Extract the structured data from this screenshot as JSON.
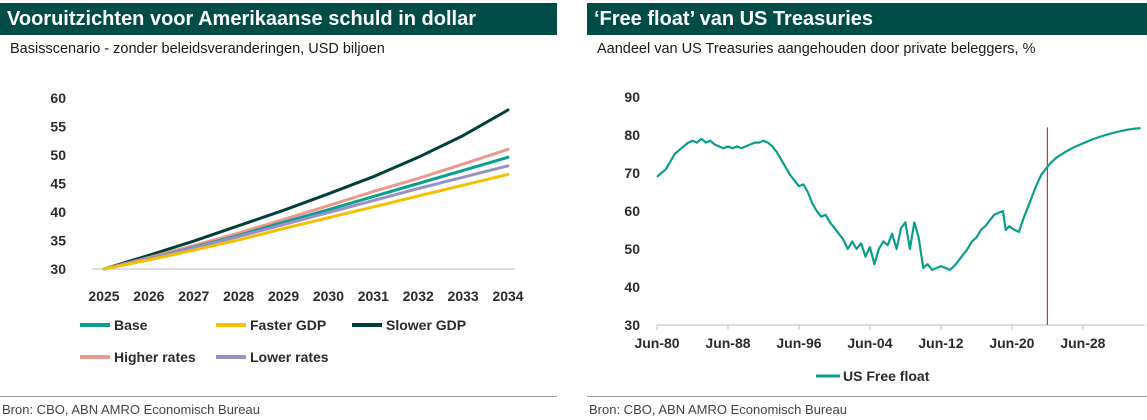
{
  "left_panel": {
    "title": "Vooruitzichten voor Amerikaanse schuld in dollar",
    "subtitle": "Basisscenario - zonder beleidsveranderingen, USD biljoen",
    "source": "Bron: CBO, ABN AMRO Economisch Bureau"
  },
  "right_panel": {
    "title": "‘Free float’  van US Treasuries",
    "subtitle": "Aandeel van US Treasuries aangehouden door private beleggers, %",
    "source": "Bron: CBO, ABN AMRO Economisch Bureau"
  },
  "chart_data": [
    {
      "type": "line",
      "x": [
        2025,
        2026,
        2027,
        2028,
        2029,
        2030,
        2031,
        2032,
        2033,
        2034
      ],
      "categories": [
        "2025",
        "2026",
        "2027",
        "2028",
        "2029",
        "2030",
        "2031",
        "2032",
        "2033",
        "2034"
      ],
      "ylim": [
        30,
        60
      ],
      "yticks": [
        "30",
        "35",
        "40",
        "45",
        "50",
        "55",
        "60"
      ],
      "grid": false,
      "legend_position": "bottom",
      "series": [
        {
          "name": "Base",
          "color": "#0a9e8d",
          "values": [
            30.0,
            31.8,
            33.8,
            35.9,
            38.2,
            40.4,
            42.7,
            45.0,
            47.3,
            49.6
          ]
        },
        {
          "name": "Faster GDP",
          "color": "#f5c000",
          "values": [
            30.0,
            31.6,
            33.3,
            35.1,
            37.1,
            39.0,
            40.9,
            42.8,
            44.7,
            46.6
          ]
        },
        {
          "name": "Slower GDP",
          "color": "#00403b",
          "values": [
            30.0,
            32.4,
            34.9,
            37.6,
            40.3,
            43.2,
            46.2,
            49.6,
            53.4,
            57.9
          ]
        },
        {
          "name": "Higher rates",
          "color": "#e99a8c",
          "values": [
            30.0,
            32.0,
            34.1,
            36.3,
            38.7,
            41.1,
            43.6,
            45.9,
            48.4,
            51.0
          ]
        },
        {
          "name": "Lower rates",
          "color": "#9a90c8",
          "values": [
            30.0,
            31.8,
            33.7,
            35.7,
            37.8,
            39.9,
            42.0,
            44.1,
            46.1,
            48.1
          ]
        }
      ]
    },
    {
      "type": "line",
      "xlim": [
        1980.5,
        2035.5
      ],
      "xticks": [
        1980.5,
        1988.5,
        1996.5,
        2004.5,
        2012.5,
        2020.5,
        2028.5
      ],
      "xtick_labels": [
        "Jun-80",
        "Jun-88",
        "Jun-96",
        "Jun-04",
        "Jun-12",
        "Jun-20",
        "Jun-28"
      ],
      "ylim": [
        30,
        90
      ],
      "yticks": [
        "30",
        "40",
        "50",
        "60",
        "70",
        "80",
        "90"
      ],
      "grid": false,
      "legend_position": "bottom",
      "marker_line": {
        "x": 2024.5,
        "color": "#e0302a",
        "y_top": 82
      },
      "series": [
        {
          "name": "US Free float",
          "color": "#0a9e8d",
          "points": [
            [
              1980.5,
              69
            ],
            [
              1981.0,
              70
            ],
            [
              1981.5,
              71
            ],
            [
              1982.0,
              73
            ],
            [
              1982.5,
              75
            ],
            [
              1983.0,
              76
            ],
            [
              1983.5,
              77
            ],
            [
              1984.0,
              78
            ],
            [
              1984.5,
              78.5
            ],
            [
              1985.0,
              78
            ],
            [
              1985.5,
              79
            ],
            [
              1986.0,
              78
            ],
            [
              1986.5,
              78.5
            ],
            [
              1987.0,
              77.5
            ],
            [
              1987.5,
              77
            ],
            [
              1988.0,
              76.5
            ],
            [
              1988.5,
              77
            ],
            [
              1989.0,
              76.5
            ],
            [
              1989.5,
              77
            ],
            [
              1990.0,
              76.5
            ],
            [
              1990.5,
              77
            ],
            [
              1991.0,
              77.5
            ],
            [
              1991.5,
              78
            ],
            [
              1992.0,
              78
            ],
            [
              1992.5,
              78.5
            ],
            [
              1993.0,
              78
            ],
            [
              1993.5,
              77
            ],
            [
              1994.0,
              75.5
            ],
            [
              1994.5,
              73.5
            ],
            [
              1995.0,
              71.5
            ],
            [
              1995.5,
              69.5
            ],
            [
              1996.0,
              68
            ],
            [
              1996.5,
              66.5
            ],
            [
              1997.0,
              67
            ],
            [
              1997.5,
              65
            ],
            [
              1998.0,
              62
            ],
            [
              1998.5,
              60
            ],
            [
              1999.0,
              58.5
            ],
            [
              1999.5,
              59
            ],
            [
              2000.0,
              57
            ],
            [
              2000.5,
              55.5
            ],
            [
              2001.0,
              54
            ],
            [
              2001.5,
              52.5
            ],
            [
              2002.0,
              50
            ],
            [
              2002.5,
              52
            ],
            [
              2003.0,
              50
            ],
            [
              2003.5,
              51.5
            ],
            [
              2004.0,
              48
            ],
            [
              2004.5,
              50.5
            ],
            [
              2005.0,
              46
            ],
            [
              2005.5,
              50
            ],
            [
              2006.0,
              52
            ],
            [
              2006.5,
              51
            ],
            [
              2007.0,
              54
            ],
            [
              2007.5,
              50
            ],
            [
              2008.0,
              55.5
            ],
            [
              2008.5,
              57
            ],
            [
              2009.0,
              50
            ],
            [
              2009.5,
              57
            ],
            [
              2010.0,
              53
            ],
            [
              2010.5,
              45
            ],
            [
              2011.0,
              46
            ],
            [
              2011.5,
              44.5
            ],
            [
              2012.0,
              45
            ],
            [
              2012.5,
              45.5
            ],
            [
              2013.0,
              45
            ],
            [
              2013.5,
              44.5
            ],
            [
              2014.0,
              45.5
            ],
            [
              2014.5,
              47
            ],
            [
              2015.0,
              48.5
            ],
            [
              2015.5,
              50
            ],
            [
              2016.0,
              52
            ],
            [
              2016.5,
              53
            ],
            [
              2017.0,
              55
            ],
            [
              2017.5,
              56
            ],
            [
              2018.0,
              57.5
            ],
            [
              2018.5,
              59
            ],
            [
              2019.0,
              59.5
            ],
            [
              2019.5,
              60
            ],
            [
              2019.8,
              55
            ],
            [
              2020.2,
              56
            ],
            [
              2020.8,
              55
            ],
            [
              2021.3,
              54.5
            ],
            [
              2021.8,
              58
            ],
            [
              2022.3,
              61
            ],
            [
              2022.8,
              64
            ],
            [
              2023.3,
              67
            ],
            [
              2023.8,
              69.5
            ],
            [
              2024.3,
              71
            ],
            [
              2024.8,
              72.5
            ],
            [
              2025.5,
              74
            ],
            [
              2026.5,
              75.5
            ],
            [
              2027.5,
              76.8
            ],
            [
              2028.5,
              77.8
            ],
            [
              2029.5,
              78.8
            ],
            [
              2030.5,
              79.6
            ],
            [
              2031.5,
              80.3
            ],
            [
              2032.5,
              80.9
            ],
            [
              2033.5,
              81.4
            ],
            [
              2034.5,
              81.7
            ],
            [
              2035.0,
              81.8
            ]
          ]
        }
      ]
    }
  ]
}
